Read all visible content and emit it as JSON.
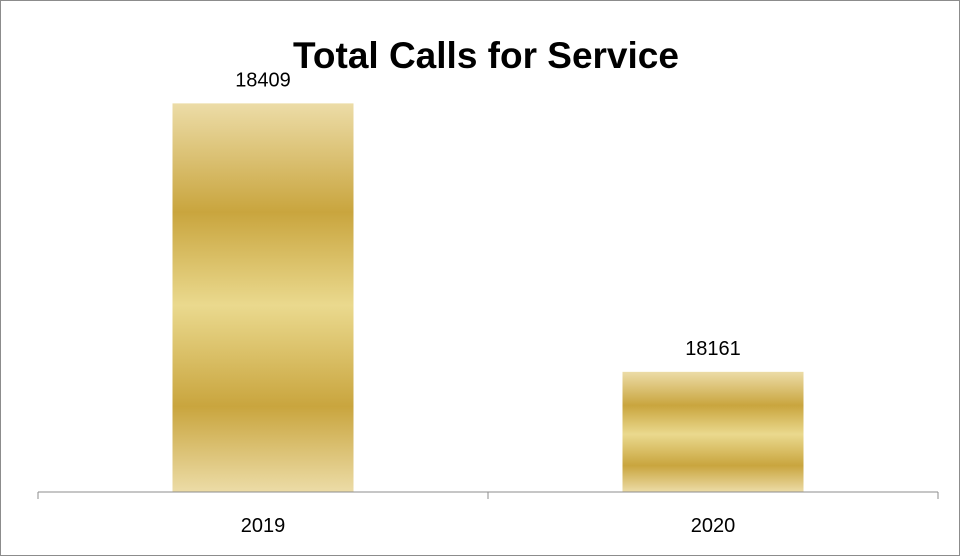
{
  "chart_data": {
    "type": "bar",
    "title": "Total Calls for Service",
    "categories": [
      "2019",
      "2020"
    ],
    "series": [
      {
        "values": [
          18409,
          18161
        ]
      }
    ],
    "data_labels": [
      "18409",
      "18161"
    ],
    "xlabel": "",
    "ylabel": "",
    "ylim": [
      18050,
      18450
    ],
    "grid": false,
    "legend": "none",
    "bar_color": "#d4b45a",
    "bar_gradient": [
      "#ecdca7",
      "#c9a53e",
      "#ead98e",
      "#c9a53e",
      "#ecdca7"
    ]
  }
}
